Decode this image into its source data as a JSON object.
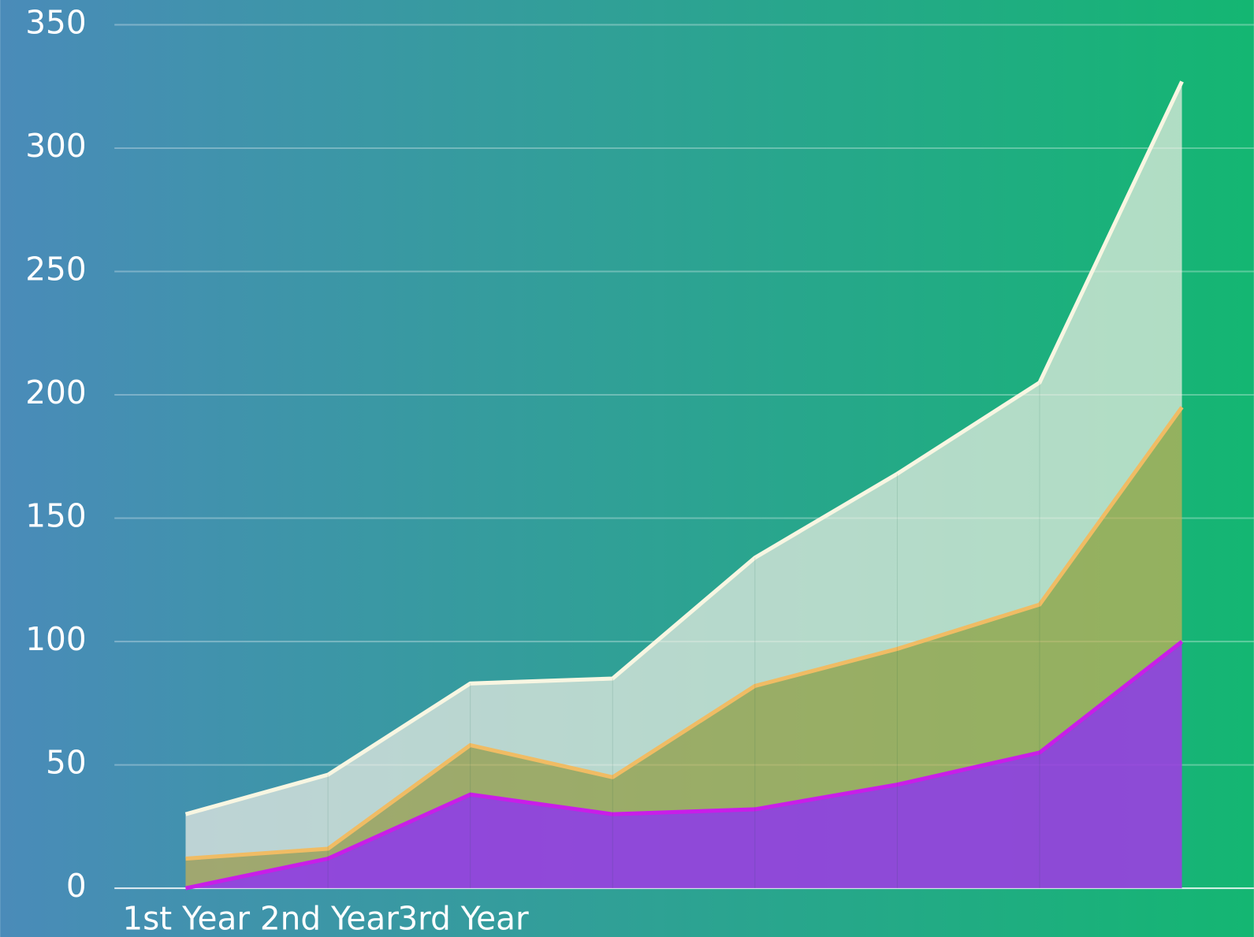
{
  "chart_data": {
    "type": "stacked_area",
    "categories": [
      "1st Year",
      "2nd Year",
      "3rd Year",
      null,
      null,
      null,
      null,
      null
    ],
    "series": [
      {
        "color": "#c81ee8",
        "fill": "#9a3fe0",
        "values": [
          0,
          12,
          38,
          30,
          32,
          42,
          55,
          100
        ]
      },
      {
        "color": "#f0bc64",
        "fill": "#c9b055",
        "values": [
          12,
          4,
          20,
          15,
          50,
          55,
          60,
          95
        ]
      },
      {
        "color": "#f8f6e2",
        "fill": "#f2f0e6",
        "values": [
          18,
          30,
          25,
          40,
          52,
          71,
          90,
          132
        ]
      }
    ],
    "ylim": [
      0,
      350
    ],
    "yticks": [
      0,
      50,
      100,
      150,
      200,
      250,
      300,
      350
    ],
    "grid": true
  }
}
